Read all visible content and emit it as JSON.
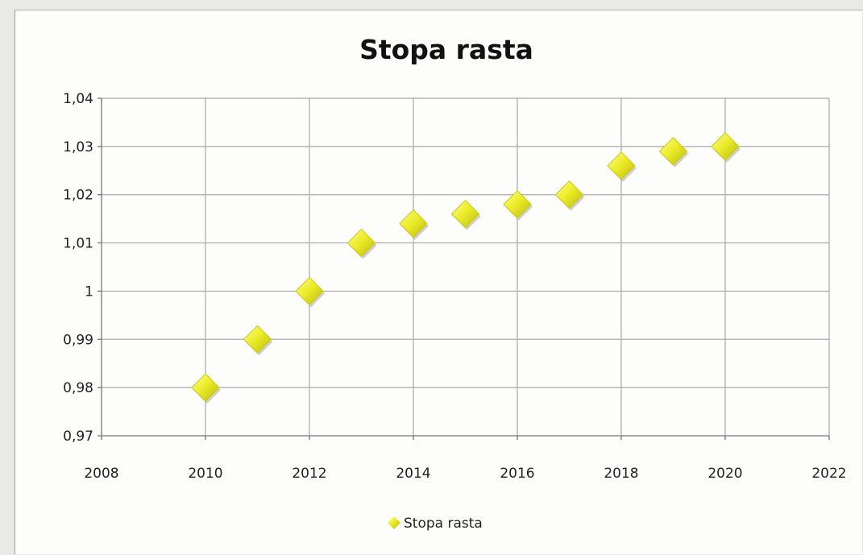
{
  "chart_data": {
    "type": "scatter",
    "title": "Stopa rasta",
    "xlabel": "",
    "ylabel": "",
    "xlim": [
      2008,
      2022
    ],
    "ylim": [
      0.97,
      1.04
    ],
    "x_ticks": [
      2008,
      2010,
      2012,
      2014,
      2016,
      2018,
      2020,
      2022
    ],
    "x_tick_labels": [
      "2008",
      "2010",
      "2012",
      "2014",
      "2016",
      "2018",
      "2020",
      "2022"
    ],
    "y_ticks": [
      0.97,
      0.98,
      0.99,
      1.0,
      1.01,
      1.02,
      1.03,
      1.04
    ],
    "y_tick_labels": [
      "0,97",
      "0,98",
      "0,99",
      "1",
      "1,01",
      "1,02",
      "1,03",
      "1,04"
    ],
    "grid": true,
    "legend_position": "bottom",
    "series": [
      {
        "name": "Stopa rasta",
        "marker": "diamond",
        "color": "#e8e81c",
        "x": [
          2010,
          2011,
          2012,
          2013,
          2014,
          2015,
          2016,
          2017,
          2018,
          2019,
          2020
        ],
        "y": [
          0.98,
          0.99,
          1.0,
          1.01,
          1.014,
          1.016,
          1.018,
          1.02,
          1.026,
          1.029,
          1.03
        ]
      }
    ]
  }
}
